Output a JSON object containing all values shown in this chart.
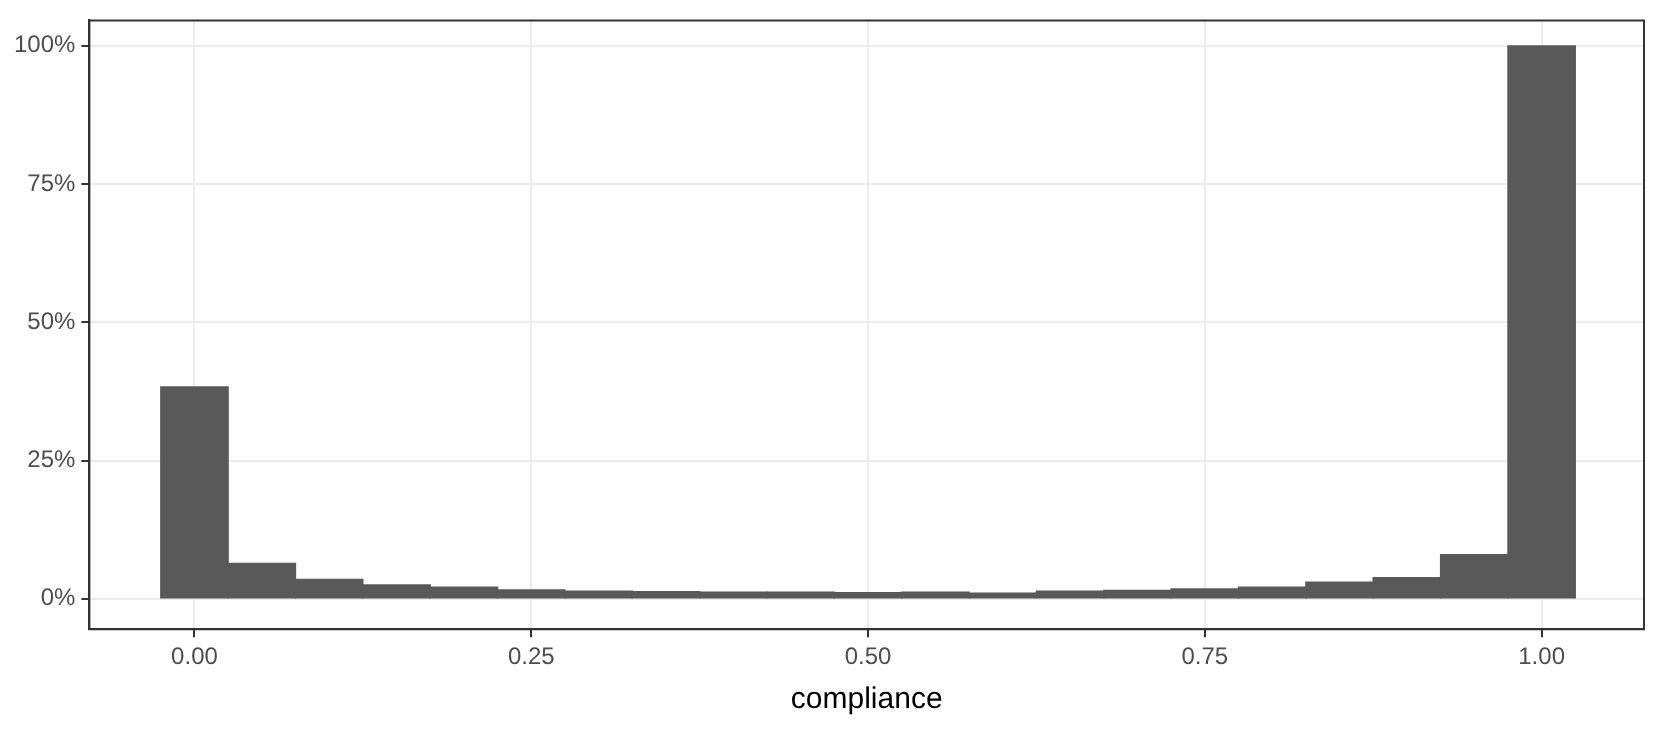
{
  "chart_data": {
    "type": "histogram",
    "xlabel": "compliance",
    "bins": [
      -0.025,
      0.025,
      0.075,
      0.125,
      0.175,
      0.225,
      0.275,
      0.325,
      0.375,
      0.425,
      0.475,
      0.525,
      0.575,
      0.625,
      0.675,
      0.725,
      0.775,
      0.825,
      0.875,
      0.925,
      0.975,
      1.025
    ],
    "values": [
      38.3,
      6.4,
      3.5,
      2.5,
      2.1,
      1.6,
      1.4,
      1.3,
      1.2,
      1.2,
      1.1,
      1.2,
      1.0,
      1.4,
      1.5,
      1.8,
      2.1,
      3.0,
      3.8,
      8.0,
      100
    ],
    "color": "#595959",
    "xlim": [
      -0.078,
      1.076
    ],
    "ylim": [
      -5.5,
      104.6
    ],
    "xticks": [
      {
        "value": 0,
        "label": "0.00"
      },
      {
        "value": 0.25,
        "label": "0.25"
      },
      {
        "value": 0.5,
        "label": "0.50"
      },
      {
        "value": 0.75,
        "label": "0.75"
      },
      {
        "value": 1,
        "label": "1.00"
      }
    ],
    "yticks": [
      {
        "value": 0,
        "label": "0%"
      },
      {
        "value": 25,
        "label": "25%"
      },
      {
        "value": 50,
        "label": "50%"
      },
      {
        "value": 75,
        "label": "75%"
      },
      {
        "value": 100,
        "label": "100%"
      }
    ],
    "grid": true
  }
}
